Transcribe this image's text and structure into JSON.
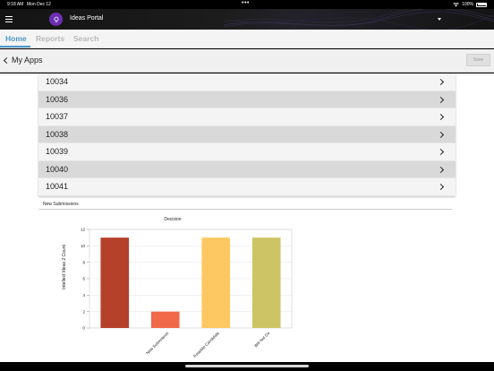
{
  "status": {
    "time": "9:18 AM",
    "date": "Mon Dec 12",
    "battery": "100%"
  },
  "app": {
    "title": "Ideas Portal"
  },
  "tabs": [
    {
      "label": "Home",
      "active": true
    },
    {
      "label": "Reports",
      "active": false
    },
    {
      "label": "Search",
      "active": false
    }
  ],
  "toolbar": {
    "back_label": "My Apps",
    "save_label": "Save"
  },
  "list": {
    "items": [
      "10034",
      "10036",
      "10037",
      "10038",
      "10039",
      "10040",
      "10041"
    ]
  },
  "section": {
    "title": "New Submissions"
  },
  "chart_data": {
    "type": "bar",
    "title": "Decision",
    "xlabel": "",
    "ylabel": "Intellect Ideas 2 Count",
    "categories": [
      "",
      "New Submission",
      "Possible Candidate",
      "Will Not Do"
    ],
    "values": [
      11,
      2,
      11,
      11
    ],
    "colors": [
      "#b5412a",
      "#f06a4a",
      "#fdc861",
      "#cdc565"
    ],
    "ylim": [
      0,
      12
    ],
    "yticks": [
      0,
      2,
      4,
      6,
      8,
      10,
      12
    ],
    "grid": true,
    "legend": "none"
  }
}
